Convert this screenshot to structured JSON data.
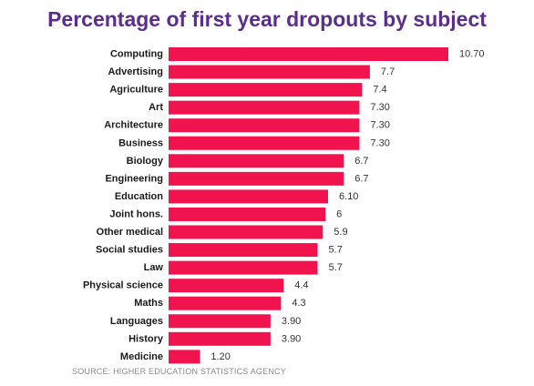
{
  "chart_data": {
    "type": "bar",
    "orientation": "horizontal",
    "title": "Percentage of first year dropouts by subject",
    "xlabel": "",
    "ylabel": "",
    "xlim": [
      0,
      10.7
    ],
    "grid": false,
    "legend": "none",
    "bar_color": "#f0134d",
    "title_color": "#5b2d8e",
    "categories": [
      "Computing",
      "Advertising",
      "Agriculture",
      "Art",
      "Architecture",
      "Business",
      "Biology",
      "Engineering",
      "Education",
      "Joint hons.",
      "Other medical",
      "Social studies",
      "Law",
      "Physical science",
      "Maths",
      "Languages",
      "History",
      "Medicine"
    ],
    "values": [
      10.7,
      7.7,
      7.4,
      7.3,
      7.3,
      7.3,
      6.7,
      6.7,
      6.1,
      6,
      5.9,
      5.7,
      5.7,
      4.4,
      4.3,
      3.9,
      3.9,
      1.2
    ],
    "value_labels": [
      "10.70",
      "7.7",
      "7.4",
      "7.30",
      "7.30",
      "7.30",
      "6.7",
      "6.7",
      "6.10",
      "6",
      "5.9",
      "5.7",
      "5.7",
      "4.4",
      "4.3",
      "3.90",
      "3.90",
      "1.20"
    ],
    "source": "SOURCE: HIGHER EDUCATION STATISTICS AGENCY"
  }
}
